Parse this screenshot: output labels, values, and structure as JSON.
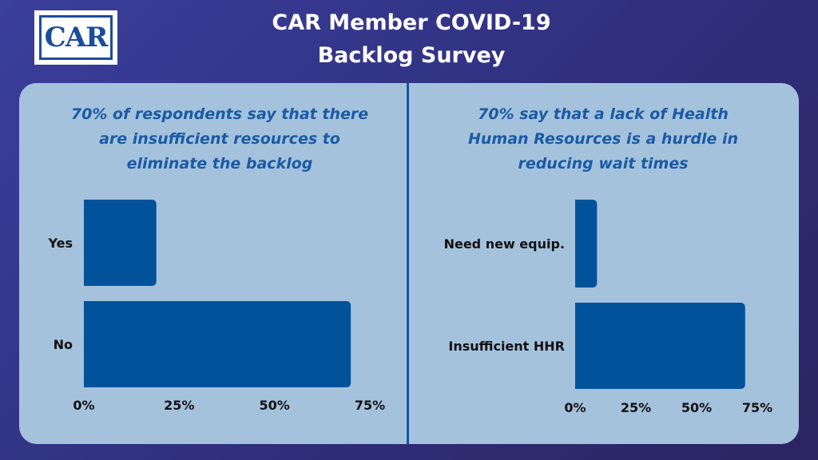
{
  "header": {
    "logo_text": "CAR",
    "title_line1": "CAR Member COVID-19",
    "title_line2": "Backlog Survey"
  },
  "colors": {
    "background": "#34358a",
    "panel": "#a5c2dd",
    "bar": "#00529b",
    "subhead_text": "#1a5ba3"
  },
  "chart_data": [
    {
      "type": "bar",
      "orientation": "horizontal",
      "title": "70% of respondents say that there are insufficient resources to eliminate the backlog",
      "title_lines": [
        "70% of respondents say that there",
        "are insufficient resources to",
        "eliminate the backlog"
      ],
      "categories": [
        "Yes",
        "No"
      ],
      "values": [
        19,
        70
      ],
      "value_unit": "%",
      "xlim": [
        0,
        75
      ],
      "xticks": [
        "0%",
        "25%",
        "50%",
        "75%"
      ],
      "grid": false
    },
    {
      "type": "bar",
      "orientation": "horizontal",
      "title": "70% say that a lack of Health Human Resources is a hurdle in reducing wait times",
      "title_lines": [
        "70% say that a lack of Health",
        "Human Resources is a hurdle in",
        "reducing wait times"
      ],
      "categories": [
        "Need new equip.",
        "Insufficient HHR"
      ],
      "values": [
        9,
        70
      ],
      "value_unit": "%",
      "xlim": [
        0,
        75
      ],
      "xticks": [
        "0%",
        "25%",
        "50%",
        "75%"
      ],
      "grid": false
    }
  ]
}
